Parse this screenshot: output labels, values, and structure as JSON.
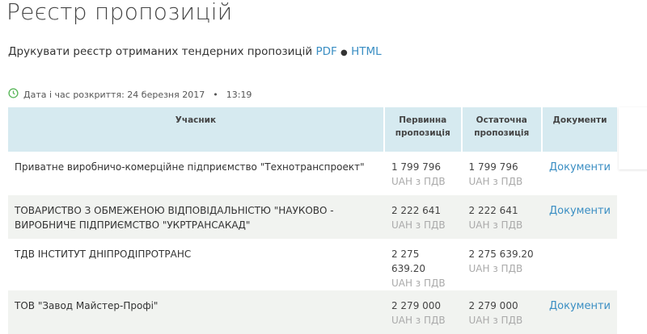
{
  "title": "Реєстр пропозицій",
  "print": {
    "label": "Друкувати реєстр отриманих тендерних пропозицій",
    "pdf": "PDF",
    "sep": "●",
    "html": "HTML"
  },
  "opening": {
    "label": "Дата і час розкриття: 24 березня 2017",
    "sep": "•",
    "time": "13:19",
    "icon": "clock-icon",
    "icon_color": "#5cb85c"
  },
  "table": {
    "headers": [
      "Учасник",
      "Первинна пропозиція",
      "Остаточна пропозиція",
      "Документи"
    ],
    "rows": [
      {
        "participant": "Приватне виробничо-комерційне підприємство \"Технотранспроект\"",
        "initial": "1 799 796",
        "final": "1 799 796",
        "currency": "UAH з ПДВ",
        "docs": "Документи"
      },
      {
        "participant": "ТОВАРИСТВО З ОБМЕЖЕНОЮ ВІДПОВІДАЛЬНІСТЮ \"НАУКОВО - ВИРОБНИЧЕ ПІДПРИЄМСТВО \"УКРТРАНСАКАД\"",
        "initial": "2 222 641",
        "final": "2 222 641",
        "currency": "UAH з ПДВ",
        "docs": "Документи"
      },
      {
        "participant": "ТДВ ІНСТИТУТ ДНІПРОДІПРОТРАНС",
        "initial": "2 275 639.20",
        "final": "2 275 639.20",
        "currency": "UAH з ПДВ",
        "docs": ""
      },
      {
        "participant": "ТОВ \"Завод Майстер-Профі\"",
        "initial": "2 279 000",
        "final": "2 279 000",
        "currency": "UAH з ПДВ",
        "docs": "Документи"
      }
    ]
  }
}
